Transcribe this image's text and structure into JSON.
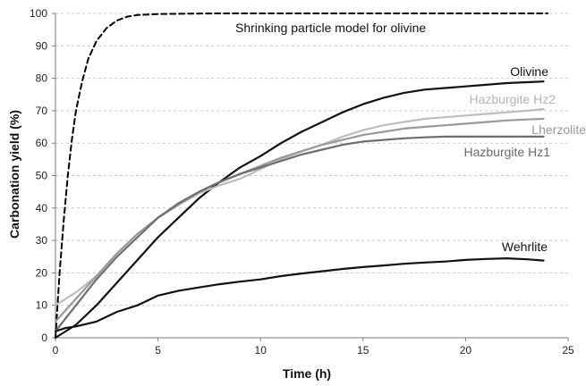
{
  "chart_data": {
    "type": "line",
    "title": "",
    "xlabel": "Time (h)",
    "ylabel": "Carbonation yield (%)",
    "xlim": [
      0,
      25
    ],
    "ylim": [
      0,
      100
    ],
    "xticks": [
      0,
      5,
      10,
      15,
      20,
      25
    ],
    "yticks": [
      0,
      10,
      20,
      30,
      40,
      50,
      60,
      70,
      80,
      90,
      100
    ],
    "grid": "horizontal dashed",
    "legend": "none (series labelled directly on plot)",
    "series": [
      {
        "name": "Shrinking particle model for olivine",
        "color": "#000000",
        "style": "dashed",
        "points": [
          [
            0,
            0
          ],
          [
            0.2,
            20
          ],
          [
            0.4,
            36
          ],
          [
            0.6,
            50
          ],
          [
            0.8,
            61
          ],
          [
            1.0,
            70
          ],
          [
            1.3,
            79
          ],
          [
            1.6,
            86
          ],
          [
            2.0,
            91.5
          ],
          [
            2.5,
            95.5
          ],
          [
            3.0,
            97.8
          ],
          [
            3.5,
            99
          ],
          [
            4.0,
            99.5
          ],
          [
            5.0,
            99.8
          ],
          [
            6.0,
            99.9
          ],
          [
            8.0,
            100
          ],
          [
            12.0,
            100
          ],
          [
            16.0,
            100
          ],
          [
            20.0,
            100
          ],
          [
            24.0,
            100
          ]
        ]
      },
      {
        "name": "Olivine",
        "color": "#111111",
        "style": "solid",
        "points": [
          [
            0,
            0
          ],
          [
            1,
            4
          ],
          [
            2,
            10
          ],
          [
            3,
            17
          ],
          [
            4,
            24
          ],
          [
            5,
            31
          ],
          [
            6,
            37
          ],
          [
            7,
            43
          ],
          [
            8,
            48
          ],
          [
            9,
            52.5
          ],
          [
            10,
            56
          ],
          [
            11,
            60
          ],
          [
            12,
            63.5
          ],
          [
            13,
            66.5
          ],
          [
            14,
            69.5
          ],
          [
            15,
            72
          ],
          [
            16,
            74
          ],
          [
            17,
            75.5
          ],
          [
            18,
            76.5
          ],
          [
            19,
            77
          ],
          [
            20,
            77.5
          ],
          [
            21,
            78
          ],
          [
            22,
            78.5
          ],
          [
            23,
            78.8
          ],
          [
            23.8,
            79
          ]
        ]
      },
      {
        "name": "Hazburgite Hz2",
        "color": "#bdbdbd",
        "style": "solid",
        "points": [
          [
            0,
            10
          ],
          [
            1,
            14
          ],
          [
            2,
            19
          ],
          [
            3,
            26
          ],
          [
            4,
            32
          ],
          [
            5,
            37
          ],
          [
            6,
            41
          ],
          [
            7,
            44.5
          ],
          [
            8,
            47
          ],
          [
            9,
            49
          ],
          [
            10,
            52
          ],
          [
            11,
            55
          ],
          [
            12,
            57.5
          ],
          [
            13,
            59.5
          ],
          [
            14,
            62
          ],
          [
            15,
            64
          ],
          [
            16,
            65.5
          ],
          [
            17,
            66.5
          ],
          [
            18,
            67.5
          ],
          [
            19,
            68
          ],
          [
            20,
            68.5
          ],
          [
            21,
            69
          ],
          [
            22,
            69.5
          ],
          [
            23,
            70
          ],
          [
            23.8,
            70.5
          ]
        ]
      },
      {
        "name": "Lherzolite",
        "color": "#999999",
        "style": "solid",
        "points": [
          [
            0,
            5
          ],
          [
            1,
            12
          ],
          [
            2,
            19
          ],
          [
            3,
            26
          ],
          [
            4,
            32
          ],
          [
            5,
            37
          ],
          [
            6,
            41
          ],
          [
            7,
            45
          ],
          [
            8,
            48
          ],
          [
            9,
            50.5
          ],
          [
            10,
            53
          ],
          [
            11,
            55.5
          ],
          [
            12,
            57.5
          ],
          [
            13,
            59.5
          ],
          [
            14,
            61
          ],
          [
            15,
            62.5
          ],
          [
            16,
            63.5
          ],
          [
            17,
            64.5
          ],
          [
            18,
            65
          ],
          [
            19,
            65.5
          ],
          [
            20,
            66
          ],
          [
            21,
            66.5
          ],
          [
            22,
            67
          ],
          [
            23,
            67.3
          ],
          [
            23.8,
            67.5
          ]
        ]
      },
      {
        "name": "Hazburgite Hz1",
        "color": "#6e6e6e",
        "style": "solid",
        "points": [
          [
            0,
            2
          ],
          [
            1,
            10
          ],
          [
            2,
            18
          ],
          [
            3,
            25
          ],
          [
            4,
            31
          ],
          [
            5,
            37
          ],
          [
            6,
            41.5
          ],
          [
            7,
            45
          ],
          [
            8,
            48
          ],
          [
            9,
            50.5
          ],
          [
            10,
            52.5
          ],
          [
            11,
            54.5
          ],
          [
            12,
            56.5
          ],
          [
            13,
            58
          ],
          [
            14,
            59.5
          ],
          [
            15,
            60.5
          ],
          [
            16,
            61
          ],
          [
            17,
            61.5
          ],
          [
            18,
            61.8
          ],
          [
            19,
            62
          ],
          [
            20,
            62
          ],
          [
            21,
            62
          ],
          [
            22,
            62
          ],
          [
            23,
            62
          ],
          [
            23.8,
            62
          ]
        ]
      },
      {
        "name": "Wehrlite",
        "color": "#111111",
        "style": "solid",
        "points": [
          [
            0,
            2
          ],
          [
            0.5,
            3
          ],
          [
            1,
            3.5
          ],
          [
            2,
            5
          ],
          [
            3,
            8
          ],
          [
            4,
            10
          ],
          [
            5,
            13
          ],
          [
            6,
            14.5
          ],
          [
            7,
            15.5
          ],
          [
            8,
            16.5
          ],
          [
            9,
            17.3
          ],
          [
            10,
            18
          ],
          [
            11,
            19
          ],
          [
            12,
            19.8
          ],
          [
            13,
            20.5
          ],
          [
            14,
            21.2
          ],
          [
            15,
            21.8
          ],
          [
            16,
            22.3
          ],
          [
            17,
            22.8
          ],
          [
            18,
            23.2
          ],
          [
            19,
            23.5
          ],
          [
            20,
            24
          ],
          [
            21,
            24.3
          ],
          [
            22,
            24.5
          ],
          [
            23,
            24.2
          ],
          [
            23.8,
            23.8
          ]
        ]
      }
    ]
  }
}
